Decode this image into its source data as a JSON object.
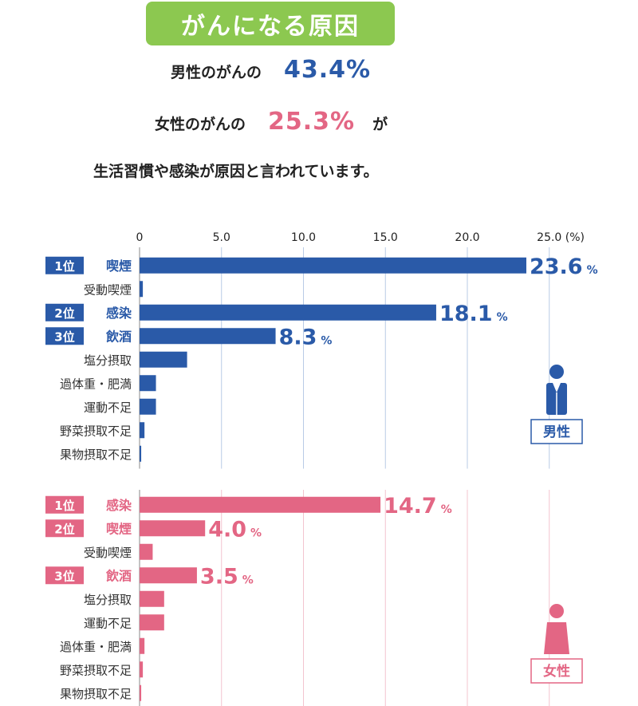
{
  "header": {
    "title": "がんになる原因",
    "line1_prefix": "男性のがんの",
    "line1_value": "43.4%",
    "line2_prefix": "女性のがんの",
    "line2_value": "25.3%",
    "line2_suffix": "が",
    "line3": "生活習慣や感染が原因と言われています。"
  },
  "colors": {
    "male": "#2a5aa8",
    "female": "#e36684",
    "title_bg": "#8cc850"
  },
  "chart_data": {
    "type": "bar",
    "orientation": "horizontal",
    "xlim": [
      0,
      25
    ],
    "ticks": [
      "0",
      "5.0",
      "10.0",
      "15.0",
      "20.0",
      "25.0"
    ],
    "unit": "(%)",
    "panels": [
      {
        "name": "男性",
        "icon": "male-icon",
        "categories": [
          "喫煙",
          "受動喫煙",
          "感染",
          "飲酒",
          "塩分摂取",
          "過体重・肥満",
          "運動不足",
          "野菜摂取不足",
          "果物摂取不足"
        ],
        "values": [
          23.6,
          0.2,
          18.1,
          8.3,
          2.9,
          1.0,
          1.0,
          0.3,
          0.1
        ],
        "ranks": [
          "1位",
          "",
          "2位",
          "3位",
          "",
          "",
          "",
          "",
          ""
        ],
        "labels": [
          "23.6",
          "",
          "18.1",
          "8.3",
          "",
          "",
          "",
          "",
          ""
        ],
        "label_unit": "%"
      },
      {
        "name": "女性",
        "icon": "female-icon",
        "categories": [
          "感染",
          "喫煙",
          "受動喫煙",
          "飲酒",
          "塩分摂取",
          "運動不足",
          "過体重・肥満",
          "野菜摂取不足",
          "果物摂取不足"
        ],
        "values": [
          14.7,
          4.0,
          0.8,
          3.5,
          1.5,
          1.5,
          0.3,
          0.2,
          0.1
        ],
        "ranks": [
          "1位",
          "2位",
          "",
          "3位",
          "",
          "",
          "",
          "",
          ""
        ],
        "labels": [
          "14.7",
          "4.0",
          "",
          "3.5",
          "",
          "",
          "",
          "",
          ""
        ],
        "label_unit": "%"
      }
    ]
  }
}
